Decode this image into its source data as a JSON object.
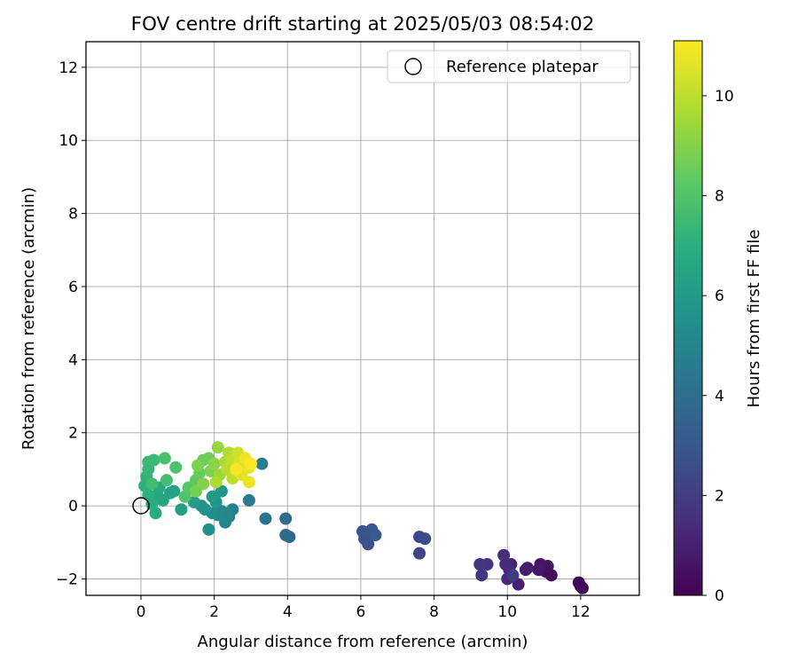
{
  "chart_data": {
    "type": "scatter",
    "title": "FOV centre drift starting at 2025/05/03 08:54:02",
    "xlabel": "Angular distance from reference (arcmin)",
    "ylabel": "Rotation from reference (arcmin)",
    "xlim": [
      -1.5,
      13.6
    ],
    "ylim": [
      -2.45,
      12.7
    ],
    "xticks": [
      0,
      2,
      4,
      6,
      8,
      10,
      12
    ],
    "yticks": [
      -2,
      0,
      2,
      4,
      6,
      8,
      10,
      12
    ],
    "grid": true,
    "legend": {
      "location": "upper right",
      "entries": [
        "Reference platepar"
      ]
    },
    "colorbar": {
      "label": "Hours from first FF file",
      "min": 0,
      "max": 11.1,
      "ticks": [
        0,
        2,
        4,
        6,
        8,
        10
      ],
      "colormap": "viridis"
    },
    "reference_point": {
      "x": 0,
      "y": 0
    },
    "points": [
      {
        "x": 12.0,
        "y": -2.2,
        "c": 0.0
      },
      {
        "x": 12.05,
        "y": -2.25,
        "c": 0.1
      },
      {
        "x": 11.95,
        "y": -2.1,
        "c": 0.2
      },
      {
        "x": 11.2,
        "y": -1.9,
        "c": 0.3
      },
      {
        "x": 11.05,
        "y": -1.8,
        "c": 0.4
      },
      {
        "x": 11.1,
        "y": -1.65,
        "c": 0.5
      },
      {
        "x": 10.9,
        "y": -1.6,
        "c": 0.6
      },
      {
        "x": 10.85,
        "y": -1.75,
        "c": 0.7
      },
      {
        "x": 10.55,
        "y": -1.7,
        "c": 0.8
      },
      {
        "x": 10.5,
        "y": -1.75,
        "c": 0.9
      },
      {
        "x": 10.3,
        "y": -2.15,
        "c": 1.0
      },
      {
        "x": 10.1,
        "y": -1.6,
        "c": 1.1
      },
      {
        "x": 10.05,
        "y": -1.75,
        "c": 1.2
      },
      {
        "x": 10.0,
        "y": -2.0,
        "c": 1.3
      },
      {
        "x": 9.95,
        "y": -1.6,
        "c": 1.4
      },
      {
        "x": 9.9,
        "y": -1.35,
        "c": 1.5
      },
      {
        "x": 9.45,
        "y": -1.6,
        "c": 1.6
      },
      {
        "x": 9.3,
        "y": -1.9,
        "c": 1.7
      },
      {
        "x": 9.25,
        "y": -1.6,
        "c": 1.8
      },
      {
        "x": 10.15,
        "y": -1.9,
        "c": 1.9
      },
      {
        "x": 7.6,
        "y": -1.3,
        "c": 2.3
      },
      {
        "x": 7.6,
        "y": -0.85,
        "c": 2.4
      },
      {
        "x": 7.75,
        "y": -0.9,
        "c": 2.5
      },
      {
        "x": 6.2,
        "y": -1.05,
        "c": 2.7
      },
      {
        "x": 6.1,
        "y": -0.9,
        "c": 2.8
      },
      {
        "x": 6.05,
        "y": -0.7,
        "c": 2.9
      },
      {
        "x": 6.3,
        "y": -0.65,
        "c": 3.0
      },
      {
        "x": 6.4,
        "y": -0.8,
        "c": 3.1
      },
      {
        "x": 4.05,
        "y": -0.85,
        "c": 3.7
      },
      {
        "x": 3.95,
        "y": -0.8,
        "c": 3.8
      },
      {
        "x": 3.95,
        "y": -0.35,
        "c": 3.9
      },
      {
        "x": 3.4,
        "y": -0.35,
        "c": 4.2
      },
      {
        "x": 2.95,
        "y": 0.15,
        "c": 4.5
      },
      {
        "x": 3.3,
        "y": 1.15,
        "c": 4.6
      },
      {
        "x": 2.5,
        "y": -0.1,
        "c": 4.8
      },
      {
        "x": 2.4,
        "y": -0.3,
        "c": 4.9
      },
      {
        "x": 2.3,
        "y": -0.45,
        "c": 5.0
      },
      {
        "x": 2.35,
        "y": -0.2,
        "c": 5.1
      },
      {
        "x": 2.2,
        "y": -0.15,
        "c": 5.2
      },
      {
        "x": 2.1,
        "y": -0.25,
        "c": 5.3
      },
      {
        "x": 1.95,
        "y": -0.2,
        "c": 5.4
      },
      {
        "x": 1.85,
        "y": -0.65,
        "c": 5.5
      },
      {
        "x": 1.75,
        "y": -0.1,
        "c": 5.6
      },
      {
        "x": 1.65,
        "y": 0.0,
        "c": 5.7
      },
      {
        "x": 2.05,
        "y": 0.1,
        "c": 5.8
      },
      {
        "x": 2.2,
        "y": 0.4,
        "c": 5.9
      },
      {
        "x": 1.95,
        "y": 0.25,
        "c": 6.0
      },
      {
        "x": 1.45,
        "y": 0.1,
        "c": 6.1
      },
      {
        "x": 1.1,
        "y": -0.1,
        "c": 6.2
      },
      {
        "x": 0.9,
        "y": 0.4,
        "c": 6.3
      },
      {
        "x": 0.8,
        "y": 0.35,
        "c": 6.4
      },
      {
        "x": 0.6,
        "y": 0.15,
        "c": 6.5
      },
      {
        "x": 0.45,
        "y": 0.3,
        "c": 6.6
      },
      {
        "x": 0.5,
        "y": 0.5,
        "c": 6.7
      },
      {
        "x": 0.4,
        "y": -0.2,
        "c": 6.8
      },
      {
        "x": 0.3,
        "y": 0.05,
        "c": 6.9
      },
      {
        "x": 0.2,
        "y": 0.3,
        "c": 7.0
      },
      {
        "x": 0.1,
        "y": 0.55,
        "c": 7.1
      },
      {
        "x": 0.15,
        "y": 0.8,
        "c": 7.2
      },
      {
        "x": 0.2,
        "y": 1.0,
        "c": 7.3
      },
      {
        "x": 0.2,
        "y": 1.2,
        "c": 7.4
      },
      {
        "x": 0.35,
        "y": 1.25,
        "c": 7.5
      },
      {
        "x": 0.3,
        "y": 0.6,
        "c": 7.6
      },
      {
        "x": 0.7,
        "y": 0.7,
        "c": 7.7
      },
      {
        "x": 0.65,
        "y": 1.3,
        "c": 7.8
      },
      {
        "x": 0.95,
        "y": 1.05,
        "c": 7.9
      },
      {
        "x": 1.2,
        "y": 0.25,
        "c": 8.0
      },
      {
        "x": 1.3,
        "y": 0.5,
        "c": 8.1
      },
      {
        "x": 1.5,
        "y": 0.7,
        "c": 8.3
      },
      {
        "x": 1.6,
        "y": 0.9,
        "c": 8.4
      },
      {
        "x": 1.7,
        "y": 1.25,
        "c": 8.5
      },
      {
        "x": 1.85,
        "y": 1.3,
        "c": 8.6
      },
      {
        "x": 1.5,
        "y": 0.4,
        "c": 8.7
      },
      {
        "x": 1.55,
        "y": 1.1,
        "c": 8.8
      },
      {
        "x": 1.9,
        "y": 0.95,
        "c": 8.9
      },
      {
        "x": 1.7,
        "y": 0.6,
        "c": 9.0
      },
      {
        "x": 2.0,
        "y": 1.15,
        "c": 9.1
      },
      {
        "x": 2.1,
        "y": 1.6,
        "c": 9.3
      },
      {
        "x": 2.15,
        "y": 0.85,
        "c": 9.4
      },
      {
        "x": 2.3,
        "y": 1.2,
        "c": 9.6
      },
      {
        "x": 2.05,
        "y": 0.65,
        "c": 9.7
      },
      {
        "x": 2.4,
        "y": 1.45,
        "c": 9.8
      },
      {
        "x": 2.35,
        "y": 1.0,
        "c": 9.9
      },
      {
        "x": 2.5,
        "y": 0.75,
        "c": 10.0
      },
      {
        "x": 2.5,
        "y": 1.25,
        "c": 10.1
      },
      {
        "x": 2.6,
        "y": 0.95,
        "c": 10.2
      },
      {
        "x": 2.65,
        "y": 1.45,
        "c": 10.3
      },
      {
        "x": 2.7,
        "y": 1.2,
        "c": 10.4
      },
      {
        "x": 2.8,
        "y": 1.1,
        "c": 10.5
      },
      {
        "x": 2.75,
        "y": 0.85,
        "c": 10.6
      },
      {
        "x": 2.95,
        "y": 1.05,
        "c": 10.7
      },
      {
        "x": 2.95,
        "y": 0.65,
        "c": 10.8
      },
      {
        "x": 2.85,
        "y": 1.3,
        "c": 10.9
      },
      {
        "x": 2.6,
        "y": 1.0,
        "c": 11.0
      },
      {
        "x": 3.0,
        "y": 1.15,
        "c": 11.1
      }
    ]
  }
}
